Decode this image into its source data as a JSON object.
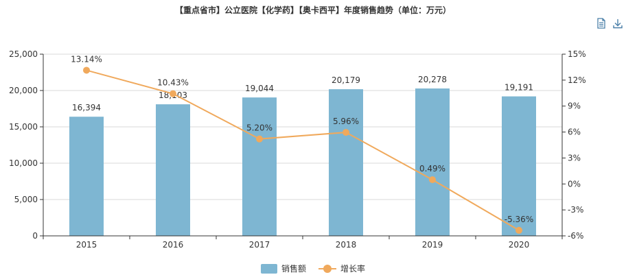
{
  "title": "【重点省市】公立医院【化学药】【奥卡西平】年度销售趋势（单位：万元）",
  "toolbar": {
    "icons": [
      "document-icon",
      "download-icon"
    ]
  },
  "colors": {
    "bar": "#7eb6d2",
    "line": "#f0a95c",
    "axis": "#333333",
    "grid": "#d9d9d9"
  },
  "chart_data": {
    "type": "bar",
    "categories": [
      "2015",
      "2016",
      "2017",
      "2018",
      "2019",
      "2020"
    ],
    "series": [
      {
        "name": "销售额",
        "type": "bar",
        "axis": "left",
        "values": [
          16394,
          18103,
          19044,
          20179,
          20278,
          19191
        ],
        "labels": [
          "16,394",
          "18,103",
          "19,044",
          "20,179",
          "20,278",
          "19,191"
        ]
      },
      {
        "name": "增长率",
        "type": "line",
        "axis": "right",
        "values": [
          13.14,
          10.43,
          5.2,
          5.96,
          0.49,
          -5.36
        ],
        "labels": [
          "13.14%",
          "10.43%",
          "5.20%",
          "5.96%",
          "0.49%",
          "-5.36%"
        ]
      }
    ],
    "y_left": {
      "min": 0,
      "max": 25000,
      "ticks": [
        "25,000",
        "20,000",
        "15,000",
        "10,000",
        "5,000",
        "0"
      ],
      "tick_values": [
        25000,
        20000,
        15000,
        10000,
        5000,
        0
      ]
    },
    "y_right": {
      "min": -6,
      "max": 15,
      "ticks": [
        "15%",
        "12%",
        "9%",
        "6%",
        "3%",
        "0%",
        "-3%",
        "-6%"
      ],
      "tick_values": [
        15,
        12,
        9,
        6,
        3,
        0,
        -3,
        -6
      ]
    },
    "grid": true,
    "legend_position": "bottom-center"
  }
}
